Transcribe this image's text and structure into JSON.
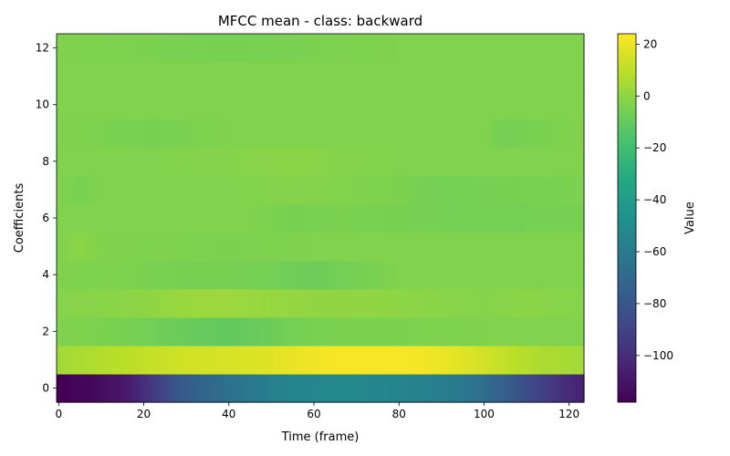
{
  "chart_data": {
    "type": "heatmap",
    "title": "MFCC mean - class: backward",
    "xlabel": "Time (frame)",
    "ylabel": "Coefficients",
    "colorbar_label": "Value",
    "colormap": "viridis",
    "n_frames": 124,
    "n_coefficients": 13,
    "xlim": [
      -0.5,
      123.5
    ],
    "ylim": [
      -0.5,
      12.5
    ],
    "vmin": -118,
    "vmax": 24,
    "x_ticks": [
      0,
      20,
      40,
      60,
      80,
      100,
      120
    ],
    "y_ticks": [
      0,
      2,
      4,
      6,
      8,
      10,
      12
    ],
    "colorbar_ticks": [
      20,
      0,
      -20,
      -40,
      -60,
      -80,
      -100
    ],
    "rows": [
      {
        "coef": 0,
        "anchors": [
          [
            0,
            -118
          ],
          [
            8,
            -115
          ],
          [
            16,
            -108
          ],
          [
            22,
            -95
          ],
          [
            28,
            -80
          ],
          [
            34,
            -72
          ],
          [
            40,
            -66
          ],
          [
            46,
            -60
          ],
          [
            52,
            -56
          ],
          [
            58,
            -53
          ],
          [
            64,
            -52
          ],
          [
            70,
            -52
          ],
          [
            76,
            -53
          ],
          [
            82,
            -55
          ],
          [
            88,
            -57
          ],
          [
            94,
            -60
          ],
          [
            100,
            -67
          ],
          [
            106,
            -78
          ],
          [
            112,
            -88
          ],
          [
            118,
            -98
          ],
          [
            123,
            -105
          ]
        ]
      },
      {
        "coef": 1,
        "anchors": [
          [
            0,
            4
          ],
          [
            6,
            6
          ],
          [
            12,
            8
          ],
          [
            18,
            10
          ],
          [
            24,
            12
          ],
          [
            30,
            14
          ],
          [
            36,
            15
          ],
          [
            42,
            16
          ],
          [
            48,
            17
          ],
          [
            54,
            19
          ],
          [
            60,
            21
          ],
          [
            66,
            23
          ],
          [
            72,
            23
          ],
          [
            78,
            23
          ],
          [
            84,
            22
          ],
          [
            90,
            20
          ],
          [
            96,
            17
          ],
          [
            102,
            13
          ],
          [
            108,
            9
          ],
          [
            114,
            6
          ],
          [
            120,
            5
          ],
          [
            123,
            4
          ]
        ]
      },
      {
        "coef": 2,
        "anchors": [
          [
            0,
            -3
          ],
          [
            10,
            -4
          ],
          [
            20,
            -6
          ],
          [
            30,
            -9
          ],
          [
            40,
            -11
          ],
          [
            50,
            -8
          ],
          [
            58,
            -5
          ],
          [
            66,
            -4
          ],
          [
            80,
            -4
          ],
          [
            100,
            -3
          ],
          [
            123,
            -3
          ]
        ]
      },
      {
        "coef": 3,
        "anchors": [
          [
            0,
            -2
          ],
          [
            14,
            -1
          ],
          [
            22,
            0
          ],
          [
            28,
            2
          ],
          [
            36,
            3
          ],
          [
            46,
            2
          ],
          [
            56,
            1
          ],
          [
            62,
            0
          ],
          [
            76,
            0
          ],
          [
            86,
            -1
          ],
          [
            100,
            -2
          ],
          [
            110,
            -1
          ],
          [
            123,
            -2
          ]
        ]
      },
      {
        "coef": 4,
        "anchors": [
          [
            0,
            -3
          ],
          [
            20,
            -4
          ],
          [
            30,
            -5
          ],
          [
            40,
            -5
          ],
          [
            50,
            -6
          ],
          [
            60,
            -8
          ],
          [
            68,
            -6
          ],
          [
            80,
            -3
          ],
          [
            100,
            -3
          ],
          [
            123,
            -3
          ]
        ]
      },
      {
        "coef": 5,
        "anchors": [
          [
            0,
            -3
          ],
          [
            5,
            -1
          ],
          [
            10,
            -3
          ],
          [
            40,
            -4
          ],
          [
            60,
            -3
          ],
          [
            80,
            -3
          ],
          [
            100,
            -3
          ],
          [
            123,
            -3
          ]
        ]
      },
      {
        "coef": 6,
        "anchors": [
          [
            0,
            -3
          ],
          [
            20,
            -3
          ],
          [
            45,
            -3
          ],
          [
            55,
            -5
          ],
          [
            65,
            -4
          ],
          [
            80,
            -5
          ],
          [
            100,
            -6
          ],
          [
            123,
            -5
          ]
        ]
      },
      {
        "coef": 7,
        "anchors": [
          [
            0,
            -3
          ],
          [
            5,
            -5
          ],
          [
            10,
            -3
          ],
          [
            40,
            -3
          ],
          [
            60,
            -2
          ],
          [
            80,
            -4
          ],
          [
            90,
            -6
          ],
          [
            105,
            -5
          ],
          [
            123,
            -4
          ]
        ]
      },
      {
        "coef": 8,
        "anchors": [
          [
            0,
            -3
          ],
          [
            20,
            -3
          ],
          [
            40,
            -2
          ],
          [
            55,
            -1
          ],
          [
            65,
            -2
          ],
          [
            80,
            -3
          ],
          [
            100,
            -3
          ],
          [
            123,
            -3
          ]
        ]
      },
      {
        "coef": 9,
        "anchors": [
          [
            0,
            -3
          ],
          [
            22,
            -5
          ],
          [
            40,
            -3
          ],
          [
            60,
            -3
          ],
          [
            80,
            -3
          ],
          [
            100,
            -3
          ],
          [
            105,
            -6
          ],
          [
            115,
            -4
          ],
          [
            123,
            -3
          ]
        ]
      },
      {
        "coef": 10,
        "anchors": [
          [
            0,
            -3
          ],
          [
            30,
            -3
          ],
          [
            60,
            -3
          ],
          [
            90,
            -3
          ],
          [
            123,
            -3
          ]
        ]
      },
      {
        "coef": 11,
        "anchors": [
          [
            0,
            -3
          ],
          [
            30,
            -3
          ],
          [
            60,
            -3
          ],
          [
            90,
            -3
          ],
          [
            123,
            -3
          ]
        ]
      },
      {
        "coef": 12,
        "anchors": [
          [
            0,
            -3
          ],
          [
            20,
            -4
          ],
          [
            40,
            -5
          ],
          [
            60,
            -4
          ],
          [
            80,
            -3
          ],
          [
            100,
            -3
          ],
          [
            123,
            -3
          ]
        ]
      }
    ]
  }
}
